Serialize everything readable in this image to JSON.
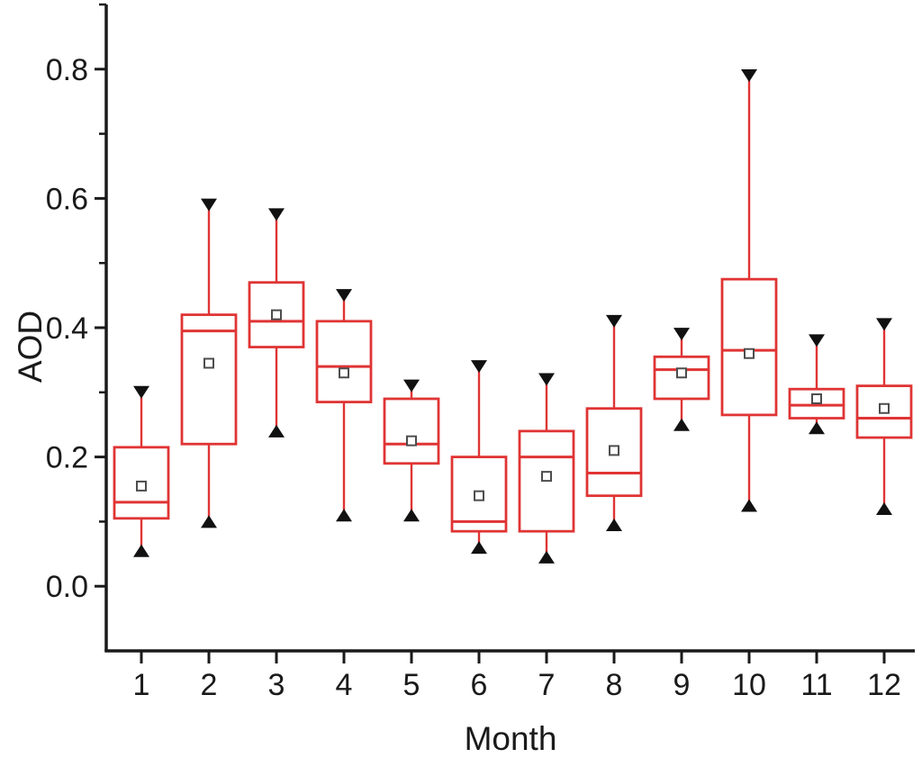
{
  "chart_data": {
    "type": "box",
    "title": "",
    "xlabel": "Month",
    "ylabel": "AOD",
    "grid": false,
    "legend": "none",
    "background": "#ffffff",
    "ylim": [
      -0.1,
      0.9
    ],
    "y_major_ticks": [
      {
        "value": 0.0,
        "label": "0.0"
      },
      {
        "value": 0.2,
        "label": "0.2"
      },
      {
        "value": 0.4,
        "label": "0.4"
      },
      {
        "value": 0.6,
        "label": "0.6"
      },
      {
        "value": 0.8,
        "label": "0.8"
      }
    ],
    "y_minor_ticks": [
      0.1,
      0.3,
      0.5,
      0.7,
      0.9
    ],
    "categories": [
      "1",
      "2",
      "3",
      "4",
      "5",
      "6",
      "7",
      "8",
      "9",
      "10",
      "11",
      "12"
    ],
    "series": [
      {
        "month": "1",
        "whisker_low": 0.055,
        "q1": 0.105,
        "median": 0.13,
        "mean": 0.155,
        "q3": 0.215,
        "whisker_high": 0.3
      },
      {
        "month": "2",
        "whisker_low": 0.1,
        "q1": 0.22,
        "median": 0.395,
        "mean": 0.345,
        "q3": 0.42,
        "whisker_high": 0.59
      },
      {
        "month": "3",
        "whisker_low": 0.24,
        "q1": 0.37,
        "median": 0.41,
        "mean": 0.42,
        "q3": 0.47,
        "whisker_high": 0.575
      },
      {
        "month": "4",
        "whisker_low": 0.11,
        "q1": 0.285,
        "median": 0.34,
        "mean": 0.33,
        "q3": 0.41,
        "whisker_high": 0.45
      },
      {
        "month": "5",
        "whisker_low": 0.11,
        "q1": 0.19,
        "median": 0.22,
        "mean": 0.225,
        "q3": 0.29,
        "whisker_high": 0.31
      },
      {
        "month": "6",
        "whisker_low": 0.06,
        "q1": 0.085,
        "median": 0.1,
        "mean": 0.14,
        "q3": 0.2,
        "whisker_high": 0.34
      },
      {
        "month": "7",
        "whisker_low": 0.045,
        "q1": 0.085,
        "median": 0.2,
        "mean": 0.17,
        "q3": 0.24,
        "whisker_high": 0.32
      },
      {
        "month": "8",
        "whisker_low": 0.095,
        "q1": 0.14,
        "median": 0.175,
        "mean": 0.21,
        "q3": 0.275,
        "whisker_high": 0.41
      },
      {
        "month": "9",
        "whisker_low": 0.25,
        "q1": 0.29,
        "median": 0.335,
        "mean": 0.33,
        "q3": 0.355,
        "whisker_high": 0.39
      },
      {
        "month": "10",
        "whisker_low": 0.125,
        "q1": 0.265,
        "median": 0.365,
        "mean": 0.36,
        "q3": 0.475,
        "whisker_high": 0.79
      },
      {
        "month": "11",
        "whisker_low": 0.245,
        "q1": 0.26,
        "median": 0.28,
        "mean": 0.29,
        "q3": 0.305,
        "whisker_high": 0.38
      },
      {
        "month": "12",
        "whisker_low": 0.12,
        "q1": 0.23,
        "median": 0.26,
        "mean": 0.275,
        "q3": 0.31,
        "whisker_high": 0.405
      }
    ],
    "colors": {
      "box": "#e03434",
      "whisker": "#e03434",
      "median": "#e03434",
      "whisker_cap": "#111111",
      "mean_marker_stroke": "#4d4d4d",
      "axis": "#1a1a1a",
      "tick_label": "#1a1a1a",
      "box_fill": "#ffffff"
    }
  }
}
